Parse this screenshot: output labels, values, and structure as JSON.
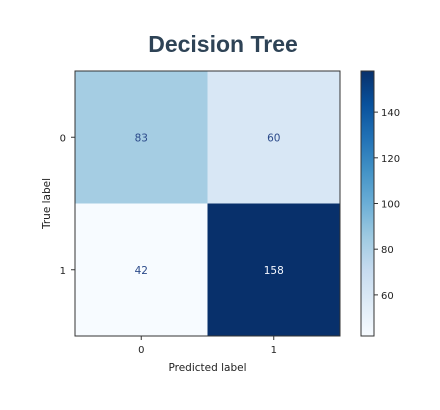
{
  "colors": {
    "title": "#2e4356",
    "cmap_low": "#f7fbff",
    "cmap_high": "#1c3a78",
    "text_on_light": "#2b4a8a",
    "text_on_dark": "#f5f8ff"
  },
  "chart_data": {
    "type": "heatmap",
    "title": "Decision Tree",
    "xlabel": "Predicted label",
    "ylabel": "True label",
    "x_categories": [
      "0",
      "1"
    ],
    "y_categories": [
      "0",
      "1"
    ],
    "values": [
      [
        83,
        60
      ],
      [
        42,
        158
      ]
    ],
    "color_range": [
      42,
      158
    ],
    "colorbar": {
      "ticks": [
        60,
        80,
        100,
        120,
        140
      ],
      "tick_labels": [
        "60",
        "80",
        "100",
        "120",
        "140"
      ]
    },
    "grid": false
  }
}
